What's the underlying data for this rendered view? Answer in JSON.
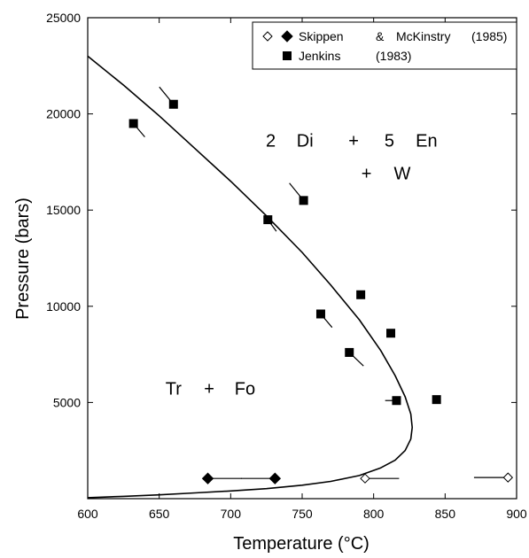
{
  "chart_data": {
    "type": "scatter",
    "xlabel": "Temperature (°C)",
    "ylabel": "Pressure (bars)",
    "xlim": [
      600,
      900
    ],
    "ylim": [
      0,
      25000
    ],
    "xticks": [
      600,
      650,
      700,
      750,
      800,
      850,
      900
    ],
    "yticks": [
      5000,
      10000,
      15000,
      20000,
      25000
    ],
    "legend_position": "top-right",
    "grid": false,
    "legend": [
      {
        "marker": "open-diamond",
        "label": "Skippen"
      },
      {
        "marker": "filled-diamond",
        "label": "&"
      },
      {
        "marker": "none",
        "label": "McKinstry"
      },
      {
        "marker": "none",
        "label": "(1985)"
      },
      {
        "marker": "filled-square",
        "label": "Jenkins"
      },
      {
        "marker": "none",
        "label": "(1983)"
      }
    ],
    "annotations": [
      {
        "text": "2",
        "x": 728,
        "y": 18300
      },
      {
        "text": "Di",
        "x": 752,
        "y": 18300
      },
      {
        "text": "+",
        "x": 786,
        "y": 18300
      },
      {
        "text": "5",
        "x": 811,
        "y": 18300
      },
      {
        "text": "En",
        "x": 837,
        "y": 18300
      },
      {
        "text": "+",
        "x": 795,
        "y": 16600
      },
      {
        "text": "W",
        "x": 820,
        "y": 16600
      },
      {
        "text": "Tr",
        "x": 660,
        "y": 5400
      },
      {
        "text": "+",
        "x": 685,
        "y": 5400
      },
      {
        "text": "Fo",
        "x": 710,
        "y": 5400
      }
    ],
    "curve": {
      "x": [
        600,
        625,
        650,
        675,
        700,
        725,
        750,
        770,
        790,
        805,
        815,
        822,
        826,
        827,
        826,
        822,
        815,
        805,
        790,
        770,
        750,
        725,
        700,
        675,
        650,
        625,
        600
      ],
      "y": [
        23000,
        21500,
        19900,
        18200,
        16500,
        14700,
        12800,
        11100,
        9300,
        7700,
        6400,
        5300,
        4400,
        3700,
        3100,
        2500,
        2000,
        1600,
        1200,
        900,
        700,
        520,
        400,
        300,
        200,
        120,
        50
      ]
    },
    "series": [
      {
        "name": "Jenkins (1983)",
        "marker": "filled-square",
        "x": [
          632,
          660,
          726,
          751,
          791,
          763,
          783,
          812,
          816,
          844
        ],
        "y": [
          19500,
          20500,
          14500,
          15500,
          10600,
          9600,
          7600,
          8600,
          5100,
          5150
        ],
        "tail_dx": [
          4,
          -5,
          3,
          -5,
          0,
          4,
          5,
          0,
          -4,
          0
        ],
        "tail_dy": [
          700,
          -900,
          600,
          -900,
          0,
          700,
          700,
          0,
          0,
          0
        ]
      },
      {
        "name": "Skippen & McKinstry (1985) filled",
        "marker": "filled-diamond",
        "x": [
          684,
          731
        ],
        "y": [
          1050,
          1050
        ],
        "tail_dx": [
          12,
          -12
        ],
        "tail_dy": [
          0,
          0
        ]
      },
      {
        "name": "Skippen & McKinstry (1985) open",
        "marker": "open-diamond",
        "x": [
          794,
          894
        ],
        "y": [
          1050,
          1100
        ],
        "tail_dx": [
          12,
          -12
        ],
        "tail_dy": [
          0,
          0
        ]
      }
    ]
  }
}
